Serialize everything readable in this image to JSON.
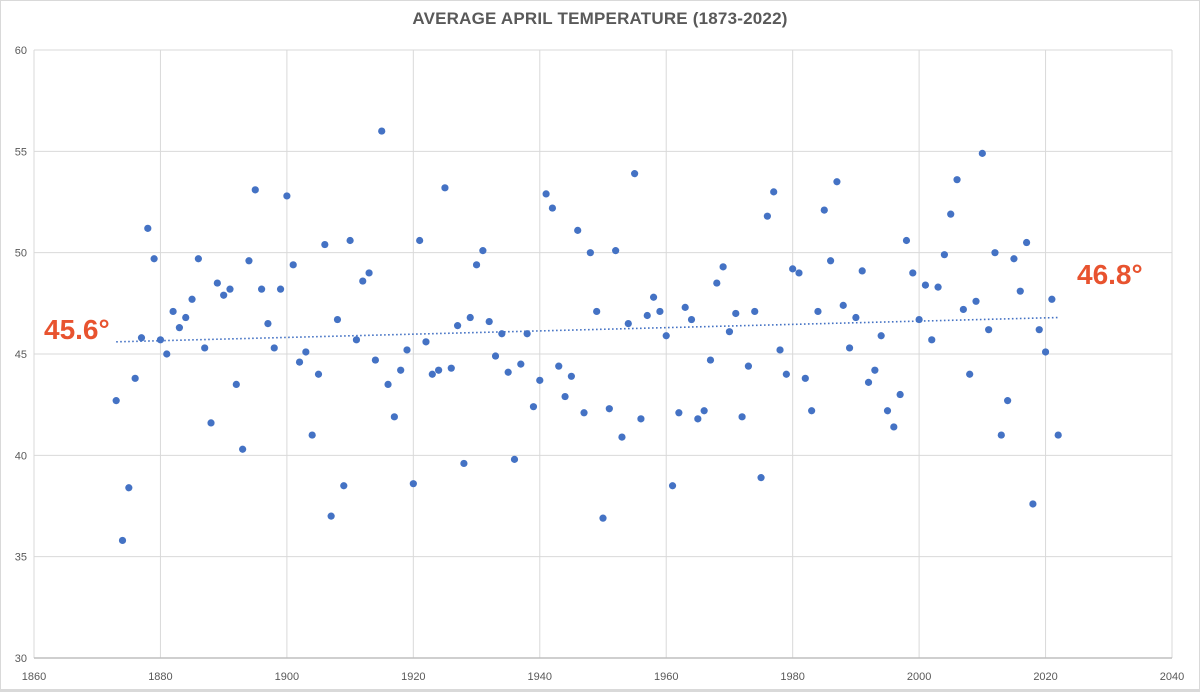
{
  "chart_data": {
    "type": "scatter",
    "title": "AVERAGE APRIL TEMPERATURE (1873-2022)",
    "xlabel": "",
    "ylabel": "",
    "xlim": [
      1860,
      2040
    ],
    "ylim": [
      30,
      60
    ],
    "x_ticks": [
      1860,
      1880,
      1900,
      1920,
      1940,
      1960,
      1980,
      2000,
      2020,
      2040
    ],
    "y_ticks": [
      30,
      35,
      40,
      45,
      50,
      55,
      60
    ],
    "grid": true,
    "legend": "none",
    "marker_color": "#4472c4",
    "trendline": {
      "type": "linear",
      "style": "dotted",
      "color": "#4472c4",
      "start": [
        1873,
        45.6
      ],
      "end": [
        2022,
        46.8
      ]
    },
    "annotations": [
      {
        "text": "45.6°",
        "color": "#e8532f",
        "near": [
          1873,
          45.6
        ]
      },
      {
        "text": "46.8°",
        "color": "#e8532f",
        "near": [
          2022,
          46.8
        ]
      }
    ],
    "series": [
      {
        "name": "Average April Temperature",
        "x": [
          1873,
          1874,
          1875,
          1876,
          1877,
          1878,
          1879,
          1880,
          1881,
          1882,
          1883,
          1884,
          1885,
          1886,
          1887,
          1888,
          1889,
          1890,
          1891,
          1892,
          1893,
          1894,
          1895,
          1896,
          1897,
          1898,
          1899,
          1900,
          1901,
          1902,
          1903,
          1904,
          1905,
          1906,
          1907,
          1908,
          1909,
          1910,
          1911,
          1912,
          1913,
          1914,
          1915,
          1916,
          1917,
          1918,
          1919,
          1920,
          1921,
          1922,
          1923,
          1924,
          1925,
          1926,
          1927,
          1928,
          1929,
          1930,
          1931,
          1932,
          1933,
          1934,
          1935,
          1936,
          1937,
          1938,
          1939,
          1940,
          1941,
          1942,
          1943,
          1944,
          1945,
          1946,
          1947,
          1948,
          1949,
          1950,
          1951,
          1952,
          1953,
          1954,
          1955,
          1956,
          1957,
          1958,
          1959,
          1960,
          1961,
          1962,
          1963,
          1964,
          1965,
          1966,
          1967,
          1968,
          1969,
          1970,
          1971,
          1972,
          1973,
          1974,
          1975,
          1976,
          1977,
          1978,
          1979,
          1980,
          1981,
          1982,
          1983,
          1984,
          1985,
          1986,
          1987,
          1988,
          1989,
          1990,
          1991,
          1992,
          1993,
          1994,
          1995,
          1996,
          1997,
          1998,
          1999,
          2000,
          2001,
          2002,
          2003,
          2004,
          2005,
          2006,
          2007,
          2008,
          2009,
          2010,
          2011,
          2012,
          2013,
          2014,
          2015,
          2016,
          2017,
          2018,
          2019,
          2020,
          2021,
          2022
        ],
        "y": [
          42.7,
          35.8,
          38.4,
          43.8,
          45.8,
          51.2,
          49.7,
          45.7,
          45.0,
          47.1,
          46.3,
          46.8,
          47.7,
          49.7,
          45.3,
          41.6,
          48.5,
          47.9,
          48.2,
          43.5,
          40.3,
          49.6,
          53.1,
          48.2,
          46.5,
          45.3,
          48.2,
          52.8,
          49.4,
          44.6,
          45.1,
          41.0,
          44.0,
          50.4,
          37.0,
          46.7,
          38.5,
          50.6,
          45.7,
          48.6,
          49.0,
          44.7,
          56.0,
          43.5,
          41.9,
          44.2,
          45.2,
          38.6,
          50.6,
          45.6,
          44.0,
          44.2,
          53.2,
          44.3,
          46.4,
          39.6,
          46.8,
          49.4,
          50.1,
          46.6,
          44.9,
          46.0,
          44.1,
          39.8,
          44.5,
          46.0,
          42.4,
          43.7,
          52.9,
          52.2,
          44.4,
          42.9,
          43.9,
          51.1,
          42.1,
          50.0,
          47.1,
          36.9,
          42.3,
          50.1,
          40.9,
          46.5,
          53.9,
          41.8,
          46.9,
          47.8,
          47.1,
          45.9,
          38.5,
          42.1,
          47.3,
          46.7,
          41.8,
          42.2,
          44.7,
          48.5,
          49.3,
          46.1,
          47.0,
          41.9,
          44.4,
          47.1,
          38.9,
          51.8,
          53.0,
          45.2,
          44.0,
          49.2,
          49.0,
          43.8,
          42.2,
          47.1,
          52.1,
          49.6,
          53.5,
          47.4,
          45.3,
          46.8,
          49.1,
          43.6,
          44.2,
          45.9,
          42.2,
          41.4,
          43.0,
          50.6,
          49.0,
          46.7,
          48.4,
          45.7,
          48.3,
          49.9,
          51.9,
          53.6,
          47.2,
          44.0,
          47.6,
          54.9,
          46.2,
          50.0,
          41.0,
          42.7,
          49.7,
          48.1,
          50.5,
          37.6,
          46.2,
          45.1,
          47.7,
          41.0
        ]
      }
    ]
  },
  "labels": {
    "title": "AVERAGE APRIL TEMPERATURE (1873-2022)",
    "start_annotation": "45.6°",
    "end_annotation": "46.8°"
  }
}
